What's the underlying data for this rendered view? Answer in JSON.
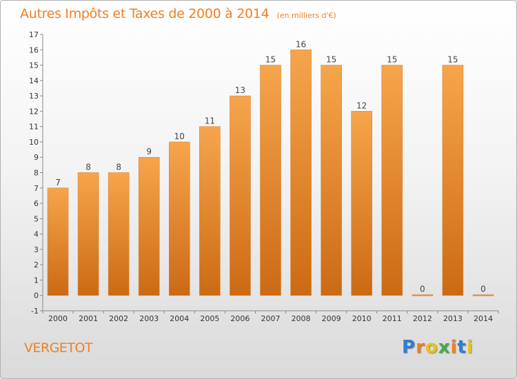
{
  "chart_data": {
    "type": "bar",
    "title": "Autres Impôts et Taxes de 2000 à 2014",
    "unit_label": "(en milliers d'€)",
    "categories": [
      "2000",
      "2001",
      "2002",
      "2003",
      "2004",
      "2005",
      "2006",
      "2007",
      "2008",
      "2009",
      "2010",
      "2011",
      "2012",
      "2013",
      "2014"
    ],
    "values": [
      7,
      8,
      8,
      9,
      10,
      11,
      13,
      15,
      16,
      15,
      12,
      15,
      0,
      15,
      0
    ],
    "data_labels": [
      "7",
      "8",
      "8",
      "9",
      "10",
      "11",
      "13",
      "15",
      "16",
      "15",
      "12",
      "15",
      "0",
      "15",
      "0"
    ],
    "y_ticks": [
      "-1",
      "0",
      "1",
      "2",
      "3",
      "4",
      "5",
      "6",
      "7",
      "8",
      "9",
      "10",
      "11",
      "12",
      "13",
      "14",
      "15",
      "16",
      "17"
    ],
    "ylim": [
      -1,
      17
    ],
    "grid": false,
    "legend": "none",
    "bar_color_top": "#f6a54c",
    "bar_color_bottom": "#cc6a14"
  },
  "place": "VERGETOT",
  "brand": {
    "letters": [
      "P",
      "r",
      "o",
      "x",
      "i",
      "t",
      "i"
    ],
    "colors": [
      "#2d7fd0",
      "#f07f20",
      "#e8c21c",
      "#4aa84a",
      "#f07f20",
      "#2d7fd0",
      "#e8c21c"
    ]
  },
  "colors": {
    "accent": "#f07f20"
  }
}
